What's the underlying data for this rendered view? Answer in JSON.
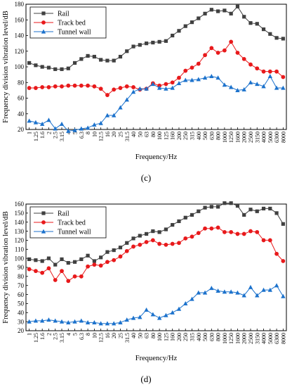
{
  "chart_data": [
    {
      "type": "line",
      "panel_label": "(c)",
      "xlabel": "Frequency/Hz",
      "ylabel": "Frequency division vibration level/dB",
      "ylim": [
        20,
        180
      ],
      "yticks": [
        20,
        40,
        60,
        80,
        100,
        120,
        140,
        160,
        180
      ],
      "grid": false,
      "legend_position": "top-left",
      "categories": [
        "1",
        "1.25",
        "1.6",
        "2",
        "2.5",
        "3.15",
        "4",
        "5",
        "6.3",
        "8",
        "10",
        "12.5",
        "16",
        "20",
        "25",
        "31.5",
        "40",
        "50",
        "63",
        "80",
        "100",
        "125",
        "160",
        "200",
        "250",
        "315",
        "400",
        "500",
        "630",
        "800",
        "1000",
        "1250",
        "1600",
        "2000",
        "2500",
        "3150",
        "4000",
        "5000",
        "6300",
        "8000"
      ],
      "series": [
        {
          "name": "Rail",
          "color": "#404040",
          "marker": "square",
          "values": [
            105,
            102,
            100,
            99,
            97,
            97,
            98,
            105,
            110,
            114,
            113,
            109,
            108,
            108,
            113,
            120,
            126,
            128,
            130,
            131,
            132,
            133,
            140,
            146,
            152,
            157,
            162,
            168,
            173,
            171,
            172,
            168,
            177,
            164,
            156,
            155,
            148,
            142,
            137,
            136
          ]
        },
        {
          "name": "Track bed",
          "color": "#e8191b",
          "marker": "circle",
          "values": [
            73,
            73,
            74,
            74,
            75,
            75,
            76,
            76,
            76,
            76,
            75,
            72,
            64,
            71,
            73,
            75,
            74,
            71,
            72,
            79,
            76,
            78,
            80,
            86,
            95,
            99,
            104,
            115,
            124,
            118,
            121,
            132,
            118,
            110,
            103,
            98,
            94,
            94,
            94,
            87
          ]
        },
        {
          "name": "Tunnel wall",
          "color": "#1c72cc",
          "marker": "triangle",
          "values": [
            31,
            29,
            27,
            32,
            21,
            27,
            18,
            19,
            21,
            22,
            26,
            28,
            38,
            38,
            48,
            58,
            68,
            72,
            72,
            78,
            73,
            72,
            73,
            79,
            83,
            83,
            84,
            86,
            88,
            86,
            77,
            74,
            70,
            71,
            80,
            78,
            75,
            88,
            73,
            73
          ]
        }
      ]
    },
    {
      "type": "line",
      "panel_label": "(d)",
      "xlabel": "Frequency/Hz",
      "ylabel": "Frequency division vibration level/dB",
      "ylim": [
        20,
        160
      ],
      "yticks": [
        20,
        30,
        40,
        50,
        60,
        70,
        80,
        90,
        100,
        110,
        120,
        130,
        140,
        150,
        160
      ],
      "grid": false,
      "legend_position": "top-left",
      "categories": [
        "1",
        "1.25",
        "1.6",
        "2",
        "2.5",
        "3.15",
        "4",
        "5",
        "6.3",
        "8",
        "10",
        "12.5",
        "16",
        "20",
        "25",
        "31.5",
        "40",
        "50",
        "63",
        "80",
        "100",
        "125",
        "160",
        "200",
        "250",
        "315",
        "400",
        "500",
        "630",
        "800",
        "1000",
        "1250",
        "1600",
        "2000",
        "2500",
        "3150",
        "4000",
        "5000",
        "6300",
        "8000"
      ],
      "series": [
        {
          "name": "Rail",
          "color": "#404040",
          "marker": "square",
          "values": [
            99,
            98,
            97,
            100,
            93,
            99,
            95,
            96,
            99,
            103,
            97,
            101,
            107,
            109,
            112,
            117,
            122,
            125,
            127,
            130,
            129,
            132,
            137,
            141,
            145,
            148,
            152,
            156,
            157,
            157,
            161,
            161,
            158,
            148,
            154,
            152,
            155,
            155,
            150,
            138
          ]
        },
        {
          "name": "Track bed",
          "color": "#e8191b",
          "marker": "circle",
          "values": [
            88,
            86,
            84,
            89,
            76,
            86,
            75,
            80,
            80,
            91,
            93,
            92,
            96,
            98,
            102,
            108,
            113,
            115,
            118,
            120,
            116,
            115,
            116,
            117,
            122,
            124,
            128,
            133,
            133,
            134,
            129,
            129,
            127,
            127,
            130,
            129,
            120,
            120,
            105,
            97
          ]
        },
        {
          "name": "Tunnel wall",
          "color": "#1c72cc",
          "marker": "triangle",
          "values": [
            30,
            31,
            31,
            32,
            31,
            30,
            29,
            30,
            31,
            29,
            29,
            28,
            28,
            28,
            29,
            32,
            34,
            35,
            43,
            38,
            34,
            37,
            40,
            44,
            50,
            55,
            62,
            62,
            67,
            64,
            63,
            63,
            62,
            59,
            68,
            59,
            65,
            65,
            70,
            58
          ]
        }
      ]
    }
  ]
}
